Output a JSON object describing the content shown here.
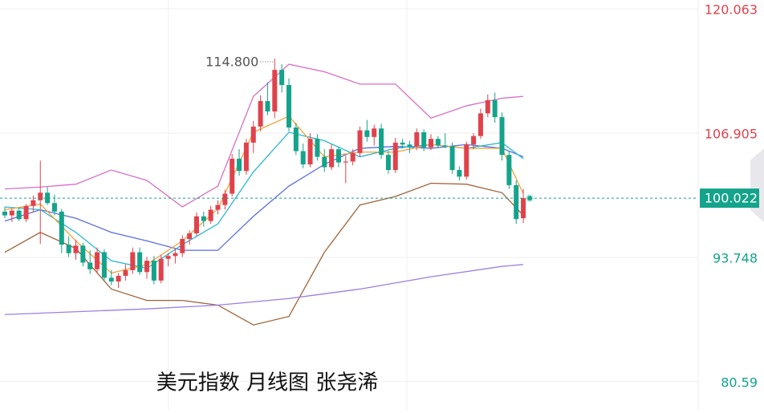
{
  "chart_data": {
    "type": "candlestick",
    "title": "美元指数 月线图 张尧浠",
    "up_color": "#e0424b",
    "down_color": "#14a38b",
    "open": [
      98.6,
      98.2,
      98.7,
      97.8,
      99.2,
      99.8,
      100.6,
      99.5,
      98.6,
      95.1,
      94.2,
      95.0,
      93.2,
      92.5,
      94.3,
      91.6,
      91.2,
      91.8,
      92.4,
      94.3,
      92.2,
      93.4,
      91.3,
      93.6,
      93.9,
      94.2,
      95.7,
      96.3,
      98.1,
      97.6,
      98.8,
      99.3,
      100.5,
      104.2,
      102.9,
      105.9,
      107.6,
      110.3,
      109.2,
      113.6,
      112.0,
      107.5,
      105.0,
      103.6,
      106.3,
      104.4,
      103.3,
      105.2,
      103.8,
      103.9,
      104.8,
      107.2,
      106.5,
      107.4,
      104.6,
      103.0,
      105.9,
      105.7,
      105.5,
      107.0,
      105.4,
      106.3,
      105.6,
      105.5,
      103.0,
      102.3,
      105.7,
      106.6,
      109.0,
      110.4,
      108.6,
      104.6,
      101.4,
      97.9
    ],
    "high": [
      99.1,
      98.9,
      99.0,
      99.4,
      100.3,
      104.0,
      101.2,
      100.4,
      98.9,
      96.0,
      95.6,
      95.3,
      94.5,
      94.8,
      94.6,
      92.4,
      92.1,
      93.0,
      94.8,
      94.8,
      93.8,
      93.9,
      94.0,
      94.2,
      94.7,
      96.1,
      96.6,
      98.5,
      98.6,
      99.2,
      99.8,
      100.9,
      104.7,
      105.2,
      106.3,
      108.2,
      110.9,
      112.3,
      114.8,
      114.2,
      112.7,
      108.0,
      105.8,
      106.9,
      106.8,
      105.2,
      105.7,
      105.5,
      104.5,
      105.2,
      107.6,
      108.3,
      107.8,
      107.9,
      105.0,
      106.4,
      106.3,
      106.1,
      107.4,
      107.3,
      106.8,
      106.6,
      106.9,
      105.9,
      103.4,
      106.0,
      106.9,
      109.5,
      111.0,
      111.2,
      109.1,
      105.0,
      101.9,
      101.0
    ],
    "low": [
      97.9,
      97.5,
      97.6,
      97.5,
      98.6,
      95.2,
      99.3,
      98.2,
      94.2,
      93.8,
      93.5,
      92.8,
      92.0,
      92.1,
      91.2,
      90.8,
      90.5,
      91.3,
      92.0,
      91.9,
      91.5,
      90.9,
      91.0,
      92.8,
      93.1,
      93.8,
      95.1,
      96.0,
      97.0,
      97.3,
      98.3,
      98.8,
      100.2,
      102.4,
      102.5,
      104.8,
      107.1,
      108.8,
      108.5,
      111.2,
      107.1,
      104.6,
      103.2,
      103.3,
      104.0,
      102.8,
      103.0,
      103.3,
      101.6,
      103.5,
      104.4,
      106.0,
      105.6,
      104.2,
      102.6,
      102.7,
      105.3,
      104.8,
      105.1,
      105.0,
      105.1,
      105.3,
      105.3,
      102.6,
      101.9,
      102.0,
      105.2,
      106.3,
      108.6,
      108.0,
      104.0,
      101.0,
      97.3,
      97.4
    ],
    "close": [
      98.2,
      98.7,
      97.8,
      99.2,
      99.8,
      100.6,
      99.5,
      98.6,
      95.1,
      94.2,
      95.0,
      93.2,
      92.5,
      94.3,
      91.6,
      91.2,
      91.8,
      92.4,
      94.3,
      92.2,
      93.4,
      91.3,
      93.6,
      93.9,
      94.2,
      95.7,
      96.3,
      98.1,
      97.6,
      98.8,
      99.3,
      100.5,
      104.2,
      102.9,
      105.9,
      107.6,
      110.3,
      109.2,
      113.6,
      112.0,
      107.5,
      105.0,
      103.6,
      106.3,
      104.4,
      103.3,
      105.2,
      103.8,
      103.9,
      104.8,
      107.2,
      106.5,
      107.4,
      104.6,
      103.0,
      105.9,
      105.7,
      105.5,
      107.0,
      105.4,
      106.3,
      105.6,
      105.5,
      103.0,
      102.3,
      105.7,
      106.6,
      109.0,
      110.4,
      108.6,
      104.6,
      101.4,
      97.8,
      100.022
    ],
    "series": [
      {
        "color": "#d66fc3",
        "x": [
          0,
          5,
          10,
          15,
          20,
          25,
          30,
          35,
          40,
          45,
          50,
          55,
          60,
          65,
          70,
          73
        ],
        "values": [
          101.0,
          101.2,
          101.5,
          103.0,
          101.9,
          99.1,
          101.3,
          110.8,
          114.2,
          113.4,
          112.1,
          112.1,
          108.5,
          109.8,
          110.6,
          110.8
        ]
      },
      {
        "color": "#a0643a",
        "x": [
          0,
          5,
          10,
          15,
          20,
          25,
          30,
          35,
          40,
          45,
          50,
          55,
          60,
          65,
          70,
          73
        ],
        "values": [
          94.3,
          96.4,
          94.7,
          90.4,
          89.2,
          89.2,
          88.7,
          86.6,
          87.5,
          94.3,
          99.3,
          100.2,
          101.6,
          101.5,
          100.6,
          98.2
        ]
      },
      {
        "color": "#5b6ee0",
        "x": [
          0,
          5,
          10,
          15,
          20,
          25,
          30,
          35,
          40,
          45,
          50,
          55,
          60,
          65,
          70,
          73
        ],
        "values": [
          97.6,
          98.8,
          97.9,
          96.4,
          95.5,
          94.5,
          94.5,
          98.1,
          101.3,
          103.6,
          105.3,
          105.5,
          105.3,
          105.7,
          105.3,
          104.4
        ]
      },
      {
        "color": "#2bb8d0",
        "x": [
          0,
          5,
          10,
          15,
          20,
          25,
          30,
          35,
          40,
          45,
          50,
          55,
          60,
          65,
          70,
          73
        ],
        "values": [
          99.1,
          98.8,
          96.4,
          93.4,
          92.6,
          95.1,
          97.3,
          102.8,
          107.0,
          106.1,
          104.4,
          105.3,
          105.7,
          105.3,
          105.9,
          104.2
        ]
      },
      {
        "color": "#f5a13a",
        "x": [
          0,
          5,
          10,
          15,
          20,
          25,
          30,
          35,
          40,
          45,
          50,
          55,
          60,
          65,
          70,
          73
        ],
        "values": [
          98.8,
          99.4,
          95.5,
          92.1,
          93.0,
          95.5,
          98.9,
          107.0,
          108.7,
          104.4,
          104.9,
          104.9,
          105.7,
          105.3,
          105.3,
          100.5
        ]
      },
      {
        "color": "#9b7fe0",
        "x": [
          0,
          20,
          30,
          40,
          50,
          60,
          70,
          73
        ],
        "values": [
          87.7,
          88.3,
          88.7,
          89.4,
          90.4,
          91.7,
          92.8,
          93.0
        ]
      }
    ],
    "annotations": [
      {
        "x": 38,
        "value": 114.8,
        "label": "114.800"
      }
    ],
    "ylim": [
      77.62,
      121.0
    ],
    "yticks": [
      120.063,
      106.905,
      93.748,
      80.59
    ]
  }
}
